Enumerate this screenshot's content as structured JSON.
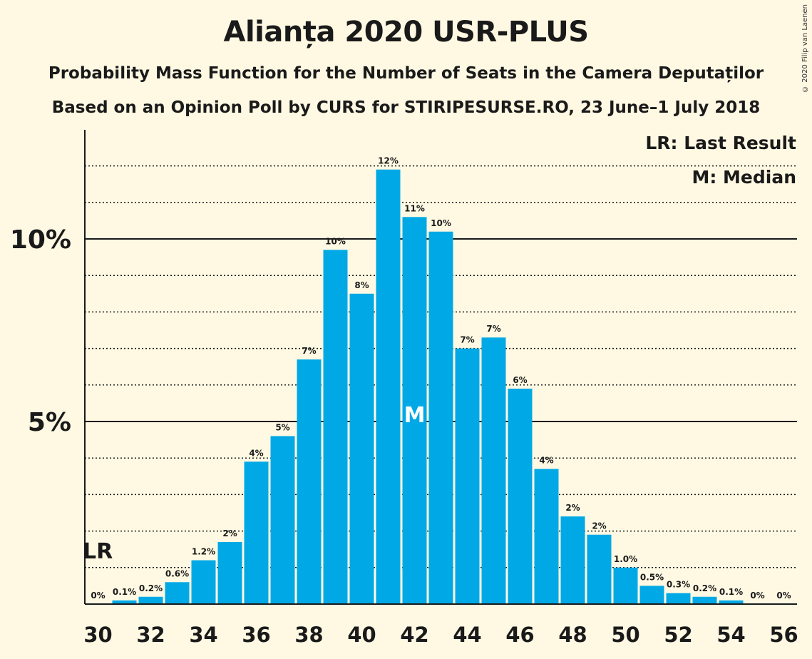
{
  "title": "Alianța 2020 USR-PLUS",
  "subtitle1": "Probability Mass Function for the Number of Seats in the Camera Deputaților",
  "subtitle2": "Based on an Opinion Poll by CURS for STIRIPESURSE.RO, 23 June–1 July 2018",
  "copyright": "© 2020 Filip van Laenen",
  "legend": {
    "last_result": "LR: Last Result",
    "median": "M: Median"
  },
  "markers": {
    "last_result_label": "LR",
    "last_result_seat": 30,
    "median_label": "M",
    "median_seat": 42
  },
  "colors": {
    "bar": "#00A9E6",
    "background": "#FFF9E3",
    "text": "#1a1a1a"
  },
  "chart_data": {
    "type": "bar",
    "x": [
      30,
      31,
      32,
      33,
      34,
      35,
      36,
      37,
      38,
      39,
      40,
      41,
      42,
      43,
      44,
      45,
      46,
      47,
      48,
      49,
      50,
      51,
      52,
      53,
      54,
      55,
      56
    ],
    "values": [
      0,
      0.1,
      0.2,
      0.6,
      1.2,
      1.7,
      3.9,
      4.6,
      6.7,
      9.7,
      8.5,
      11.9,
      10.6,
      10.2,
      7.0,
      7.3,
      5.9,
      3.7,
      2.4,
      1.9,
      1.0,
      0.5,
      0.3,
      0.2,
      0.1,
      0,
      0
    ],
    "data_labels": [
      "0%",
      "0.1%",
      "0.2%",
      "0.6%",
      "1.2%",
      "2%",
      "4%",
      "5%",
      "7%",
      "10%",
      "8%",
      "12%",
      "11%",
      "10%",
      "7%",
      "7%",
      "6%",
      "4%",
      "2%",
      "2%",
      "1.0%",
      "0.5%",
      "0.3%",
      "0.2%",
      "0.1%",
      "0%",
      "0%"
    ],
    "x_tick_labels": [
      "30",
      "32",
      "34",
      "36",
      "38",
      "40",
      "42",
      "44",
      "46",
      "48",
      "50",
      "52",
      "54",
      "56"
    ],
    "y_tick_values": [
      5,
      10
    ],
    "y_tick_labels": [
      "5%",
      "10%"
    ],
    "ylim": [
      0,
      13
    ],
    "minor_gridlines": [
      1,
      2,
      3,
      4,
      6,
      7,
      8,
      9,
      11,
      12
    ],
    "unit": "%"
  }
}
